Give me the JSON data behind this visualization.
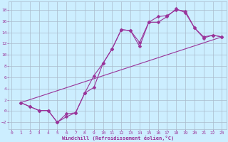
{
  "bg_color": "#cceeff",
  "grid_color": "#aabbcc",
  "line_color": "#993399",
  "xlim": [
    -0.3,
    23.5
  ],
  "ylim": [
    -3.2,
    19.5
  ],
  "xticks": [
    0,
    1,
    2,
    3,
    4,
    5,
    6,
    7,
    8,
    9,
    10,
    11,
    12,
    13,
    14,
    15,
    16,
    17,
    18,
    19,
    20,
    21,
    22,
    23
  ],
  "yticks": [
    -2,
    0,
    2,
    4,
    6,
    8,
    10,
    12,
    14,
    16,
    18
  ],
  "xlabel": "Windchill (Refroidissement éolien,°C)",
  "line1_x": [
    1,
    2,
    3,
    4,
    5,
    6,
    7,
    8,
    9,
    10,
    11,
    12,
    13,
    14,
    15,
    16,
    17,
    18,
    19,
    20,
    21,
    22,
    23
  ],
  "line1_y": [
    1.5,
    0.8,
    0.1,
    0.1,
    -2.0,
    -1.0,
    -0.3,
    3.2,
    6.3,
    8.5,
    11.1,
    14.5,
    14.3,
    12.2,
    15.8,
    16.8,
    17.0,
    18.0,
    17.8,
    14.8,
    13.2,
    13.5,
    13.2
  ],
  "line2_x": [
    1,
    2,
    3,
    4,
    5,
    6,
    7,
    8,
    9,
    10,
    11,
    12,
    13,
    14,
    15,
    16,
    17,
    18,
    19,
    20,
    21,
    22,
    23
  ],
  "line2_y": [
    1.5,
    0.8,
    0.1,
    0.1,
    -2.0,
    -0.5,
    -0.3,
    3.2,
    4.2,
    8.5,
    11.1,
    14.5,
    14.3,
    11.5,
    15.8,
    15.8,
    16.8,
    18.2,
    17.5,
    14.8,
    13.0,
    13.5,
    13.2
  ],
  "line3_x": [
    1,
    23
  ],
  "line3_y": [
    1.5,
    13.2
  ],
  "marker": "D",
  "markersize": 2.5,
  "linewidth": 0.8
}
